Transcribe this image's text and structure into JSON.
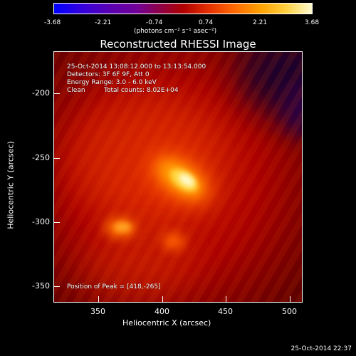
{
  "colorbar": {
    "ticks": [
      "-3.68",
      "-2.21",
      "-0.74",
      "0.74",
      "2.21",
      "3.68"
    ],
    "units": "(photons cm⁻² s⁻¹ asec⁻²)",
    "min": -3.68,
    "max": 3.68
  },
  "title": "Reconstructed RHESSI Image",
  "info": {
    "line1": "25-Oct-2014 13:08:12.000 to 13:13:54.000",
    "line2": "Detectors: 3F 6F 9F, Att 0",
    "line3": "Energy Range: 3.0 - 6.0 keV",
    "line4_label": "Clean",
    "line4_counts": "Total counts: 8.02E+04"
  },
  "peak_text": "Position of Peak = [418,-265]",
  "axes": {
    "xlabel": "Heliocentric X (arcsec)",
    "ylabel": "Heliocentric Y (arcsec)",
    "xticks": [
      "350",
      "400",
      "450",
      "500"
    ],
    "yticks": [
      "-200",
      "-250",
      "-300",
      "-350"
    ]
  },
  "footer_date": "25-Oct-2014 22:37"
}
